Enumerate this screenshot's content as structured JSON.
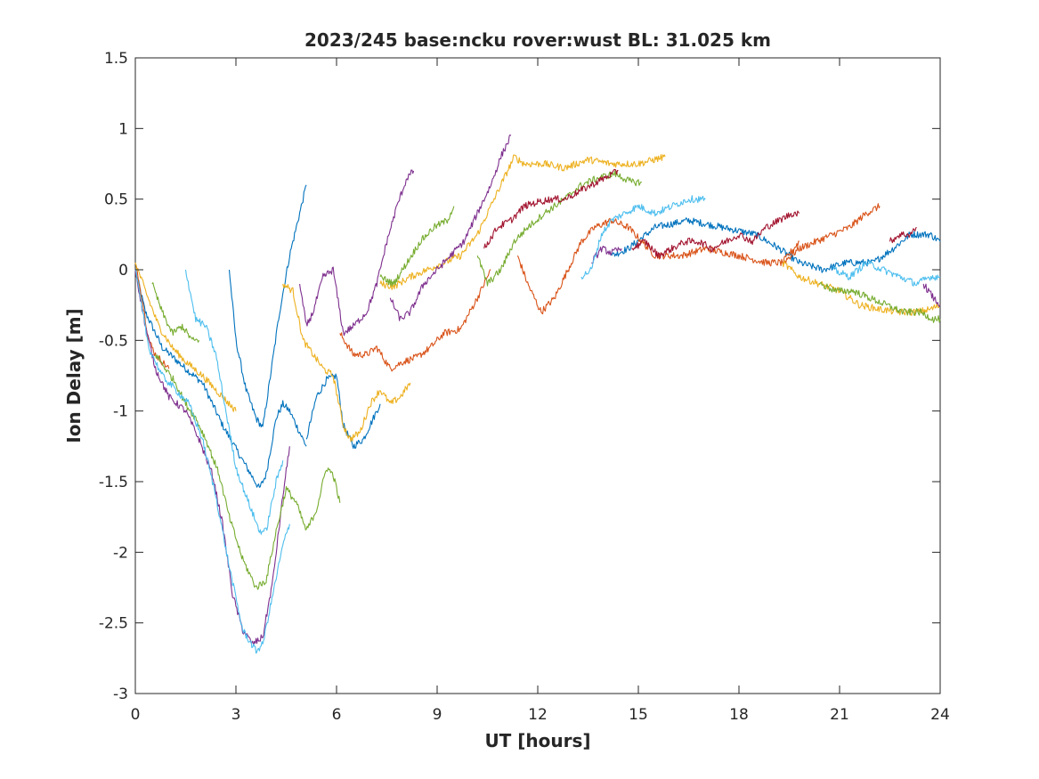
{
  "chart_data": {
    "type": "line",
    "title": "2023/245 base:ncku rover:wust BL: 31.025 km",
    "xlabel": "UT [hours]",
    "ylabel": "Ion Delay [m]",
    "xlim": [
      0,
      24
    ],
    "ylim": [
      -3,
      1.5
    ],
    "xticks": [
      0,
      3,
      6,
      9,
      12,
      15,
      18,
      21,
      24
    ],
    "yticks": [
      -3,
      -2.5,
      -2,
      -1.5,
      -1,
      -0.5,
      0,
      0.5,
      1,
      1.5
    ],
    "xtick_labels": [
      "0",
      "3",
      "6",
      "9",
      "12",
      "15",
      "18",
      "21",
      "24"
    ],
    "ytick_labels": [
      "-3",
      "-2.5",
      "-2",
      "-1.5",
      "-1",
      "-0.5",
      "0",
      "0.5",
      "1",
      "1.5"
    ],
    "grid": false,
    "legend": "none",
    "series": [
      {
        "color": "#0072BD",
        "x": [
          0,
          0.3,
          0.8,
          1.5,
          2,
          2.6,
          3.2,
          3.7,
          3.9,
          4.2,
          4.4,
          4.6,
          4.8,
          5,
          5.1
        ],
        "y": [
          0,
          -0.3,
          -0.55,
          -0.7,
          -0.8,
          -1.1,
          -1.35,
          -1.55,
          -1.45,
          -1.05,
          -0.95,
          -1.0,
          -1.1,
          -1.2,
          -1.25
        ]
      },
      {
        "color": "#0072BD",
        "x": [
          2.8,
          3.0,
          3.3,
          3.6,
          3.8,
          4.0,
          4.3,
          4.6,
          4.9,
          5.1
        ],
        "y": [
          0,
          -0.5,
          -0.85,
          -1.05,
          -1.12,
          -0.8,
          -0.3,
          0.1,
          0.4,
          0.6
        ]
      },
      {
        "color": "#0072BD",
        "x": [
          5.1,
          5.4,
          5.7,
          6.0,
          6.2,
          6.5,
          6.8,
          7.1,
          7.3
        ],
        "y": [
          -1.2,
          -0.9,
          -0.78,
          -0.75,
          -1.1,
          -1.25,
          -1.2,
          -1.05,
          -0.95
        ]
      },
      {
        "color": "#0072BD",
        "x": [
          14.2,
          14.7,
          15.5,
          16.5,
          17.5,
          18.5,
          19.2,
          19.8,
          20.5,
          21.2,
          22,
          22.6,
          23.1,
          23.7,
          24
        ],
        "y": [
          0.1,
          0.15,
          0.3,
          0.35,
          0.3,
          0.25,
          0.15,
          0.05,
          0.0,
          0.05,
          0.05,
          0.15,
          0.25,
          0.25,
          0.2
        ]
      },
      {
        "color": "#D95319",
        "x": [
          0,
          0.2,
          0.4,
          0.6,
          0.8,
          1.0
        ],
        "y": [
          0.05,
          -0.2,
          -0.5,
          -0.6,
          -0.65,
          -0.7
        ]
      },
      {
        "color": "#D95319",
        "x": [
          6.1,
          6.5,
          6.9,
          7.2,
          7.6,
          8.0,
          8.4,
          8.8,
          9.2,
          9.7,
          10.2,
          10.6
        ],
        "y": [
          -0.45,
          -0.6,
          -0.6,
          -0.55,
          -0.7,
          -0.65,
          -0.62,
          -0.55,
          -0.45,
          -0.42,
          -0.2,
          0.0
        ]
      },
      {
        "color": "#D95319",
        "x": [
          11.4,
          11.7,
          12.1,
          12.5,
          12.9,
          13.3,
          13.7,
          14.2,
          14.7,
          15.5,
          16.3,
          17,
          18,
          18.8,
          19.3,
          19.8
        ],
        "y": [
          0.1,
          -0.1,
          -0.3,
          -0.2,
          0.0,
          0.2,
          0.3,
          0.35,
          0.3,
          0.1,
          0.1,
          0.15,
          0.1,
          0.05,
          0.05,
          0.2
        ]
      },
      {
        "color": "#D95319",
        "x": [
          19.3,
          19.8,
          20.3,
          20.8,
          21.3,
          21.8,
          22.2
        ],
        "y": [
          0.05,
          0.15,
          0.2,
          0.25,
          0.3,
          0.4,
          0.45
        ]
      },
      {
        "color": "#EDB120",
        "x": [
          0,
          0.3,
          0.7,
          1.1,
          1.5,
          2.0,
          2.6,
          3.0
        ],
        "y": [
          0.05,
          -0.15,
          -0.4,
          -0.55,
          -0.65,
          -0.75,
          -0.9,
          -1.0
        ]
      },
      {
        "color": "#EDB120",
        "x": [
          4.4,
          4.7,
          5.0,
          5.3,
          5.6,
          5.9,
          6.2,
          6.4,
          6.7,
          7.0,
          7.3,
          7.6,
          7.9,
          8.2
        ],
        "y": [
          -0.1,
          -0.15,
          -0.5,
          -0.6,
          -0.7,
          -0.75,
          -1.1,
          -1.2,
          -1.15,
          -0.95,
          -0.85,
          -0.95,
          -0.9,
          -0.8
        ]
      },
      {
        "color": "#EDB120",
        "x": [
          7.3,
          7.7,
          8.2,
          8.7,
          9.2,
          9.7,
          10.2,
          10.5,
          10.9,
          11.3,
          11.6,
          12.2,
          12.8,
          13.5,
          14.2,
          15.0,
          15.8
        ],
        "y": [
          -0.1,
          -0.12,
          -0.05,
          0.0,
          0.05,
          0.1,
          0.25,
          0.4,
          0.6,
          0.8,
          0.75,
          0.75,
          0.72,
          0.78,
          0.75,
          0.75,
          0.8
        ]
      },
      {
        "color": "#EDB120",
        "x": [
          19.3,
          19.8,
          20.4,
          21.0,
          21.6,
          22.2,
          22.8,
          23.3,
          23.7,
          24
        ],
        "y": [
          0.05,
          -0.05,
          -0.1,
          -0.15,
          -0.25,
          -0.28,
          -0.3,
          -0.3,
          -0.28,
          -0.25
        ]
      },
      {
        "color": "#7E2F8E",
        "x": [
          0,
          0.3,
          0.6,
          1.0,
          1.5,
          1.9,
          2.3,
          2.6,
          2.9,
          3.2,
          3.5,
          3.8,
          4.1,
          4.4,
          4.6
        ],
        "y": [
          0,
          -0.4,
          -0.7,
          -0.9,
          -1.0,
          -1.2,
          -1.45,
          -1.8,
          -2.3,
          -2.55,
          -2.65,
          -2.6,
          -2.2,
          -1.6,
          -1.25
        ]
      },
      {
        "color": "#7E2F8E",
        "x": [
          4.9,
          5.1,
          5.3,
          5.6,
          5.9,
          6.2,
          6.5,
          6.9,
          7.2,
          7.5,
          7.8,
          8.1,
          8.3
        ],
        "y": [
          -0.1,
          -0.4,
          -0.3,
          -0.05,
          0.0,
          -0.45,
          -0.4,
          -0.3,
          -0.1,
          0.2,
          0.45,
          0.65,
          0.7
        ]
      },
      {
        "color": "#7E2F8E",
        "x": [
          7.6,
          7.9,
          8.2,
          8.6,
          9.0,
          9.4,
          9.8,
          10.2,
          10.6,
          10.9,
          11.2
        ],
        "y": [
          -0.2,
          -0.35,
          -0.3,
          -0.1,
          0.0,
          0.1,
          0.2,
          0.4,
          0.6,
          0.8,
          0.95
        ]
      },
      {
        "color": "#7E2F8E",
        "x": [
          13.6,
          13.9,
          14.2,
          14.5
        ],
        "y": [
          0.05,
          0.15,
          0.12,
          0.15
        ]
      },
      {
        "color": "#7E2F8E",
        "x": [
          23.5,
          23.8,
          24
        ],
        "y": [
          -0.1,
          -0.2,
          -0.25
        ]
      },
      {
        "color": "#77AC30",
        "x": [
          0.5,
          0.8,
          1.1,
          1.4,
          1.7,
          1.9
        ],
        "y": [
          -0.1,
          -0.3,
          -0.45,
          -0.4,
          -0.5,
          -0.5
        ]
      },
      {
        "color": "#77AC30",
        "x": [
          0.6,
          0.9,
          1.2,
          1.5,
          1.8,
          2.1,
          2.5,
          2.8,
          3.2,
          3.6,
          3.9,
          4.2,
          4.5,
          4.8,
          5.1,
          5.4,
          5.7,
          5.9,
          6.1
        ],
        "y": [
          -0.6,
          -0.7,
          -0.8,
          -0.95,
          -1.05,
          -1.2,
          -1.45,
          -1.75,
          -2.05,
          -2.25,
          -2.2,
          -1.85,
          -1.55,
          -1.65,
          -1.85,
          -1.7,
          -1.4,
          -1.45,
          -1.65
        ]
      },
      {
        "color": "#77AC30",
        "x": [
          7.3,
          7.7,
          8.1,
          8.5,
          8.9,
          9.3,
          9.5
        ],
        "y": [
          -0.05,
          -0.1,
          0.05,
          0.2,
          0.3,
          0.35,
          0.45
        ]
      },
      {
        "color": "#77AC30",
        "x": [
          10.2,
          10.5,
          10.9,
          11.3,
          11.7,
          12.2,
          12.8,
          13.3,
          13.8,
          14.3,
          14.8,
          15.1
        ],
        "y": [
          0.1,
          -0.1,
          0.0,
          0.2,
          0.3,
          0.4,
          0.5,
          0.6,
          0.65,
          0.68,
          0.62,
          0.62
        ]
      },
      {
        "color": "#77AC30",
        "x": [
          20.4,
          20.9,
          21.4,
          21.9,
          22.4,
          22.9,
          23.4,
          23.8,
          24
        ],
        "y": [
          -0.1,
          -0.15,
          -0.15,
          -0.2,
          -0.25,
          -0.3,
          -0.3,
          -0.35,
          -0.35
        ]
      },
      {
        "color": "#4DBEEE",
        "x": [
          0,
          0.4,
          0.8,
          1.2,
          1.6,
          2.0,
          2.4,
          2.8,
          3.2,
          3.6,
          3.8,
          4.1,
          4.4,
          4.6
        ],
        "y": [
          0,
          -0.55,
          -0.75,
          -0.85,
          -0.95,
          -1.2,
          -1.6,
          -2.1,
          -2.55,
          -2.7,
          -2.65,
          -2.3,
          -1.95,
          -1.8
        ]
      },
      {
        "color": "#4DBEEE",
        "x": [
          1.5,
          1.8,
          2.1,
          2.4,
          2.7,
          3.0,
          3.3,
          3.7,
          3.9,
          4.2,
          4.4
        ],
        "y": [
          0,
          -0.35,
          -0.4,
          -0.6,
          -1.0,
          -1.4,
          -1.6,
          -1.85,
          -1.85,
          -1.5,
          -1.35
        ]
      },
      {
        "color": "#4DBEEE",
        "x": [
          13.3,
          13.6,
          13.9,
          14.2,
          14.6,
          15.0,
          15.5,
          16.0,
          16.5,
          16.8,
          17.0
        ],
        "y": [
          -0.05,
          0.0,
          0.25,
          0.35,
          0.4,
          0.45,
          0.4,
          0.45,
          0.5,
          0.5,
          0.5
        ]
      },
      {
        "color": "#4DBEEE",
        "x": [
          20.8,
          21.3,
          21.8,
          22.3,
          22.8,
          23.3,
          23.7,
          24
        ],
        "y": [
          0.0,
          -0.05,
          0.05,
          0.0,
          -0.05,
          -0.1,
          -0.05,
          -0.05
        ]
      },
      {
        "color": "#A2142F",
        "x": [
          10.4,
          10.8,
          11.2,
          11.6,
          12.0,
          12.4,
          12.8,
          13.2,
          13.6,
          14.0,
          14.4
        ],
        "y": [
          0.15,
          0.3,
          0.35,
          0.45,
          0.48,
          0.5,
          0.5,
          0.55,
          0.6,
          0.65,
          0.7
        ]
      },
      {
        "color": "#A2142F",
        "x": [
          14.8,
          15.2,
          15.6,
          16.0,
          16.4,
          16.8,
          17.2,
          17.6,
          18.0,
          18.4,
          18.8,
          19.2,
          19.6,
          19.8
        ],
        "y": [
          0.15,
          0.2,
          0.1,
          0.15,
          0.2,
          0.2,
          0.15,
          0.2,
          0.25,
          0.2,
          0.3,
          0.35,
          0.4,
          0.4
        ]
      },
      {
        "color": "#A2142F",
        "x": [
          22.5,
          22.8,
          23.1,
          23.3
        ],
        "y": [
          0.2,
          0.25,
          0.25,
          0.3
        ]
      }
    ]
  }
}
